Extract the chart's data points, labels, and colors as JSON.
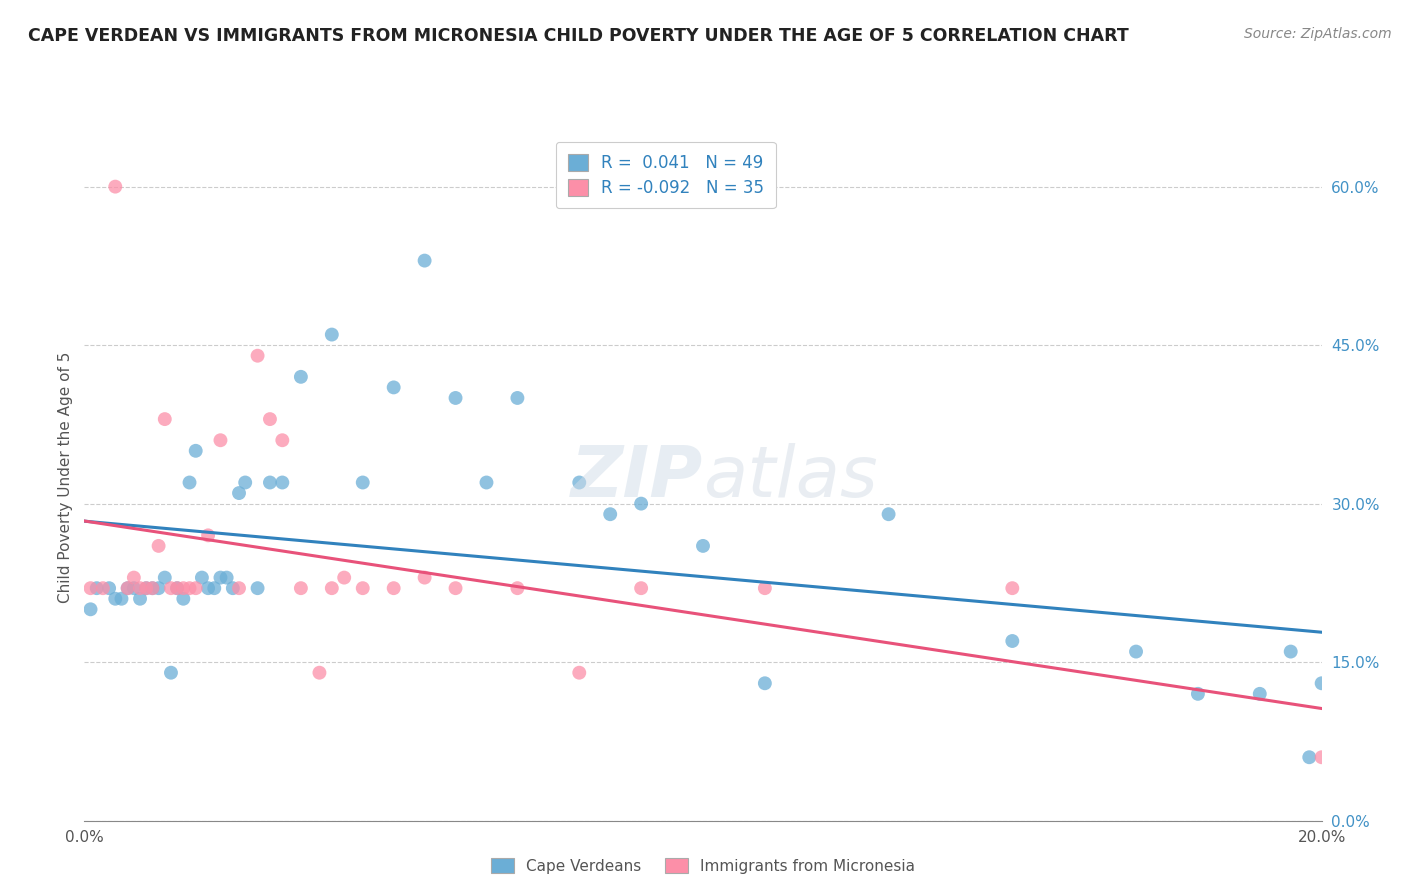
{
  "title": "CAPE VERDEAN VS IMMIGRANTS FROM MICRONESIA CHILD POVERTY UNDER THE AGE OF 5 CORRELATION CHART",
  "source": "Source: ZipAtlas.com",
  "ylabel": "Child Poverty Under the Age of 5",
  "xlim": [
    0.0,
    0.2
  ],
  "ylim": [
    -0.02,
    0.68
  ],
  "plot_ylim": [
    0.0,
    0.65
  ],
  "yticks": [
    0.0,
    0.15,
    0.3,
    0.45,
    0.6
  ],
  "ytick_labels": [
    "0.0%",
    "15.0%",
    "30.0%",
    "45.0%",
    "60.0%"
  ],
  "xticks": [
    0.0,
    0.05,
    0.1,
    0.15,
    0.2
  ],
  "xtick_labels": [
    "0.0%",
    "",
    "",
    "",
    "20.0%"
  ],
  "blue_R": 0.041,
  "blue_N": 49,
  "pink_R": -0.092,
  "pink_N": 35,
  "blue_color": "#6baed6",
  "pink_color": "#fc8fa8",
  "blue_line_color": "#3182bd",
  "pink_line_color": "#e8527a",
  "blue_scatter_x": [
    0.001,
    0.002,
    0.004,
    0.005,
    0.006,
    0.007,
    0.008,
    0.009,
    0.01,
    0.011,
    0.012,
    0.013,
    0.014,
    0.015,
    0.016,
    0.017,
    0.018,
    0.019,
    0.02,
    0.021,
    0.022,
    0.023,
    0.024,
    0.025,
    0.026,
    0.028,
    0.03,
    0.032,
    0.035,
    0.04,
    0.045,
    0.05,
    0.055,
    0.06,
    0.065,
    0.07,
    0.08,
    0.085,
    0.09,
    0.1,
    0.11,
    0.13,
    0.15,
    0.17,
    0.18,
    0.19,
    0.195,
    0.198,
    0.2
  ],
  "blue_scatter_y": [
    0.2,
    0.22,
    0.22,
    0.21,
    0.21,
    0.22,
    0.22,
    0.21,
    0.22,
    0.22,
    0.22,
    0.23,
    0.14,
    0.22,
    0.21,
    0.32,
    0.35,
    0.23,
    0.22,
    0.22,
    0.23,
    0.23,
    0.22,
    0.31,
    0.32,
    0.22,
    0.32,
    0.32,
    0.42,
    0.46,
    0.32,
    0.41,
    0.53,
    0.4,
    0.32,
    0.4,
    0.32,
    0.29,
    0.3,
    0.26,
    0.13,
    0.29,
    0.17,
    0.16,
    0.12,
    0.12,
    0.16,
    0.06,
    0.13
  ],
  "pink_scatter_x": [
    0.001,
    0.003,
    0.005,
    0.007,
    0.008,
    0.009,
    0.01,
    0.011,
    0.012,
    0.013,
    0.014,
    0.015,
    0.016,
    0.017,
    0.018,
    0.02,
    0.022,
    0.025,
    0.028,
    0.03,
    0.032,
    0.035,
    0.038,
    0.04,
    0.042,
    0.045,
    0.05,
    0.055,
    0.06,
    0.07,
    0.08,
    0.09,
    0.11,
    0.15,
    0.2
  ],
  "pink_scatter_y": [
    0.22,
    0.22,
    0.6,
    0.22,
    0.23,
    0.22,
    0.22,
    0.22,
    0.26,
    0.38,
    0.22,
    0.22,
    0.22,
    0.22,
    0.22,
    0.27,
    0.36,
    0.22,
    0.44,
    0.38,
    0.36,
    0.22,
    0.14,
    0.22,
    0.23,
    0.22,
    0.22,
    0.23,
    0.22,
    0.22,
    0.14,
    0.22,
    0.22,
    0.22,
    0.06
  ]
}
